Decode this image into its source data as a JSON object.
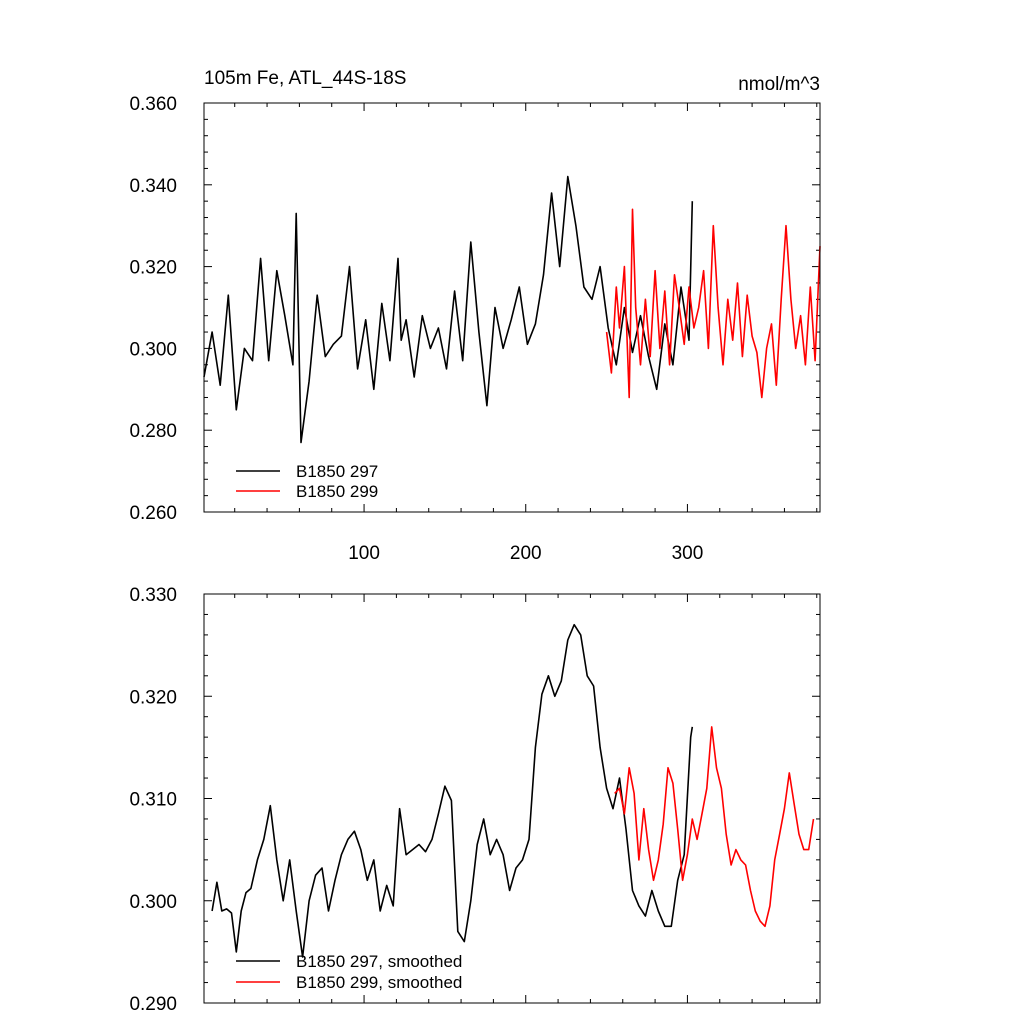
{
  "chart_data": [
    {
      "type": "line",
      "title": "105m Fe, ATL_44S-18S",
      "units": "nmol/m^3",
      "xlabel": "",
      "ylabel": "",
      "xlim": [
        1,
        382
      ],
      "ylim": [
        0.26,
        0.36
      ],
      "xticks": [
        100,
        200,
        300
      ],
      "xtick_labels": [
        "100",
        "200",
        "300"
      ],
      "yticks": [
        0.26,
        0.28,
        0.3,
        0.32,
        0.34,
        0.36
      ],
      "ytick_labels": [
        "0.260",
        "0.280",
        "0.300",
        "0.320",
        "0.340",
        "0.360"
      ],
      "grid": false,
      "legend_position": "bottom-left",
      "series": [
        {
          "name": "B1850 297",
          "color": "#000000",
          "x": [
            1,
            6,
            11,
            16,
            21,
            26,
            31,
            36,
            41,
            46,
            51,
            56,
            58,
            61,
            66,
            71,
            76,
            81,
            86,
            91,
            96,
            101,
            106,
            111,
            116,
            121,
            123,
            126,
            131,
            136,
            141,
            146,
            151,
            156,
            161,
            166,
            171,
            176,
            181,
            186,
            191,
            196,
            201,
            206,
            211,
            216,
            221,
            226,
            231,
            236,
            241,
            246,
            251,
            256,
            261,
            266,
            271,
            276,
            281,
            286,
            291,
            296,
            301,
            303
          ],
          "values": [
            0.293,
            0.304,
            0.291,
            0.313,
            0.285,
            0.3,
            0.297,
            0.322,
            0.297,
            0.319,
            0.308,
            0.296,
            0.333,
            0.277,
            0.292,
            0.313,
            0.298,
            0.301,
            0.303,
            0.32,
            0.295,
            0.307,
            0.29,
            0.311,
            0.297,
            0.322,
            0.302,
            0.307,
            0.293,
            0.308,
            0.3,
            0.305,
            0.295,
            0.314,
            0.297,
            0.326,
            0.304,
            0.286,
            0.31,
            0.3,
            0.307,
            0.315,
            0.301,
            0.306,
            0.318,
            0.338,
            0.32,
            0.342,
            0.33,
            0.315,
            0.312,
            0.32,
            0.305,
            0.296,
            0.31,
            0.299,
            0.308,
            0.298,
            0.29,
            0.306,
            0.296,
            0.315,
            0.302,
            0.336
          ]
        },
        {
          "name": "B1850 299",
          "color": "#ff0000",
          "x": [
            250,
            253,
            256,
            258,
            261,
            264,
            266,
            268,
            271,
            274,
            277,
            280,
            283,
            286,
            289,
            292,
            295,
            298,
            301,
            304,
            307,
            310,
            313,
            316,
            319,
            322,
            325,
            328,
            331,
            334,
            337,
            340,
            343,
            346,
            349,
            352,
            355,
            358,
            361,
            364,
            367,
            370,
            373,
            376,
            379,
            382
          ],
          "values": [
            0.304,
            0.294,
            0.315,
            0.305,
            0.32,
            0.288,
            0.334,
            0.31,
            0.296,
            0.312,
            0.298,
            0.319,
            0.3,
            0.314,
            0.296,
            0.318,
            0.31,
            0.301,
            0.315,
            0.305,
            0.31,
            0.319,
            0.3,
            0.33,
            0.31,
            0.296,
            0.312,
            0.302,
            0.316,
            0.298,
            0.313,
            0.303,
            0.299,
            0.288,
            0.3,
            0.306,
            0.291,
            0.312,
            0.33,
            0.312,
            0.3,
            0.308,
            0.296,
            0.315,
            0.297,
            0.325
          ]
        }
      ]
    },
    {
      "type": "line",
      "title": "",
      "xlabel": "",
      "ylabel": "",
      "xlim": [
        1,
        382
      ],
      "ylim": [
        0.29,
        0.33
      ],
      "xticks": [
        100,
        200,
        300
      ],
      "xtick_labels": [],
      "yticks": [
        0.29,
        0.3,
        0.31,
        0.32,
        0.33
      ],
      "ytick_labels": [
        "0.290",
        "0.300",
        "0.310",
        "0.320",
        "0.330"
      ],
      "grid": false,
      "legend_position": "bottom-left",
      "series": [
        {
          "name": "B1850 297, smoothed",
          "color": "#000000",
          "x": [
            6,
            9,
            12,
            15,
            18,
            21,
            24,
            27,
            30,
            34,
            38,
            42,
            46,
            50,
            54,
            58,
            62,
            66,
            70,
            74,
            78,
            82,
            86,
            90,
            94,
            98,
            102,
            106,
            110,
            114,
            118,
            122,
            126,
            130,
            134,
            138,
            142,
            146,
            150,
            154,
            158,
            162,
            166,
            170,
            174,
            178,
            182,
            186,
            190,
            194,
            198,
            202,
            206,
            210,
            214,
            218,
            222,
            226,
            230,
            234,
            238,
            242,
            246,
            250,
            254,
            258,
            262,
            266,
            270,
            274,
            278,
            282,
            286,
            290,
            294,
            298,
            302,
            303
          ],
          "values": [
            0.299,
            0.3018,
            0.299,
            0.2992,
            0.2988,
            0.295,
            0.299,
            0.3008,
            0.3012,
            0.304,
            0.306,
            0.3093,
            0.304,
            0.3,
            0.304,
            0.299,
            0.2945,
            0.3,
            0.3025,
            0.3032,
            0.299,
            0.302,
            0.3045,
            0.306,
            0.3068,
            0.305,
            0.302,
            0.304,
            0.299,
            0.3015,
            0.2995,
            0.309,
            0.3045,
            0.305,
            0.3055,
            0.3048,
            0.306,
            0.3085,
            0.3112,
            0.3098,
            0.297,
            0.296,
            0.3,
            0.3055,
            0.308,
            0.3045,
            0.306,
            0.3045,
            0.301,
            0.3032,
            0.304,
            0.306,
            0.315,
            0.3202,
            0.322,
            0.32,
            0.3215,
            0.3255,
            0.327,
            0.326,
            0.322,
            0.321,
            0.315,
            0.311,
            0.309,
            0.312,
            0.307,
            0.301,
            0.2995,
            0.2985,
            0.301,
            0.299,
            0.2975,
            0.2975,
            0.302,
            0.3045,
            0.316,
            0.317
          ]
        },
        {
          "name": "B1850 299, smoothed",
          "color": "#ff0000",
          "x": [
            255,
            258,
            261,
            264,
            267,
            270,
            273,
            276,
            279,
            282,
            285,
            288,
            291,
            294,
            297,
            300,
            303,
            306,
            309,
            312,
            315,
            318,
            321,
            324,
            327,
            330,
            333,
            336,
            339,
            342,
            345,
            348,
            351,
            354,
            357,
            360,
            363,
            366,
            369,
            372,
            375,
            378
          ],
          "values": [
            0.3105,
            0.311,
            0.3085,
            0.313,
            0.3105,
            0.304,
            0.309,
            0.305,
            0.302,
            0.304,
            0.3075,
            0.313,
            0.3115,
            0.307,
            0.302,
            0.3045,
            0.308,
            0.306,
            0.3085,
            0.311,
            0.317,
            0.313,
            0.311,
            0.3065,
            0.3035,
            0.305,
            0.304,
            0.3035,
            0.301,
            0.299,
            0.298,
            0.2975,
            0.2995,
            0.304,
            0.3065,
            0.309,
            0.3125,
            0.3095,
            0.3065,
            0.305,
            0.305,
            0.308
          ]
        }
      ]
    }
  ]
}
